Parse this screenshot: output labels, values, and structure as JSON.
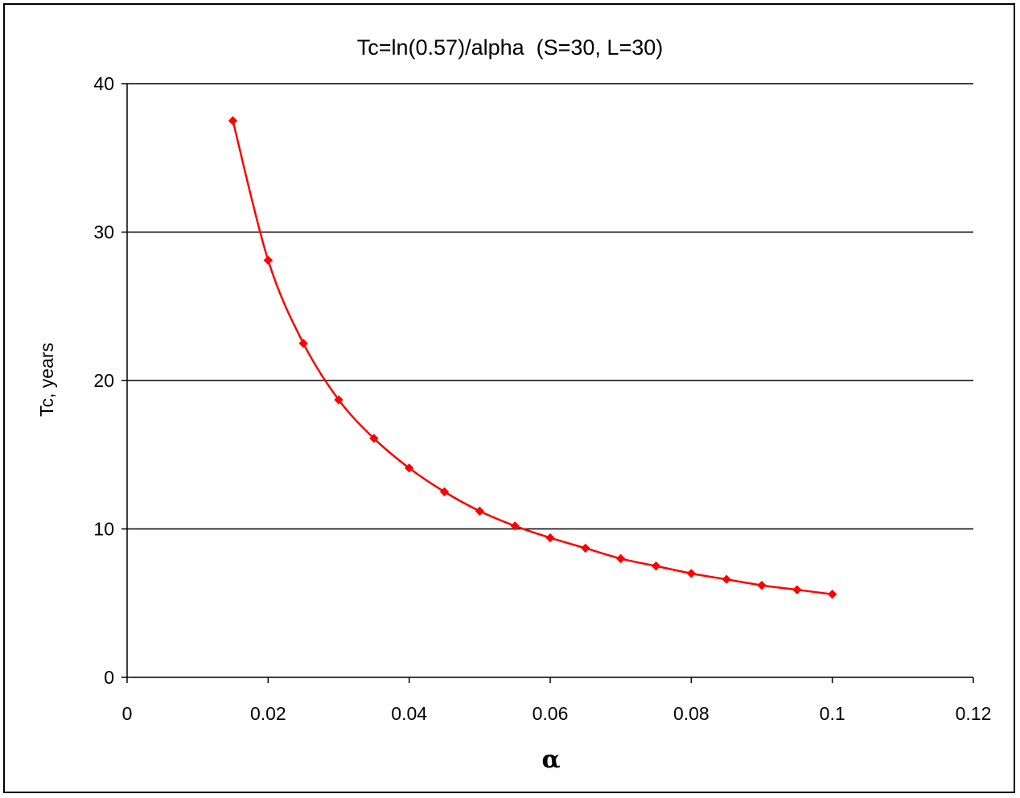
{
  "chart_data": {
    "type": "line",
    "title": "Tc=ln(0.57)/alpha  (S=30, L=30)",
    "xlabel": "α",
    "ylabel": "Tc, years",
    "xlim": [
      0,
      0.12
    ],
    "ylim": [
      0,
      40
    ],
    "x_ticks": [
      "0",
      "0.02",
      "0.04",
      "0.06",
      "0.08",
      "0.1",
      "0.12"
    ],
    "y_ticks": [
      "0",
      "10",
      "20",
      "30",
      "40"
    ],
    "grid": "horizontal major gridlines",
    "legend": "none",
    "series": [
      {
        "color": "#ff0000",
        "marker": "diamond",
        "x": [
          0.015,
          0.02,
          0.025,
          0.03,
          0.035,
          0.04,
          0.045,
          0.05,
          0.055,
          0.06,
          0.065,
          0.07,
          0.075,
          0.08,
          0.085,
          0.09,
          0.095,
          0.1
        ],
        "y": [
          37.5,
          28.1,
          22.5,
          18.7,
          16.1,
          14.1,
          12.5,
          11.2,
          10.2,
          9.4,
          8.7,
          8.0,
          7.5,
          7.0,
          6.6,
          6.2,
          5.9,
          5.6
        ]
      }
    ]
  }
}
